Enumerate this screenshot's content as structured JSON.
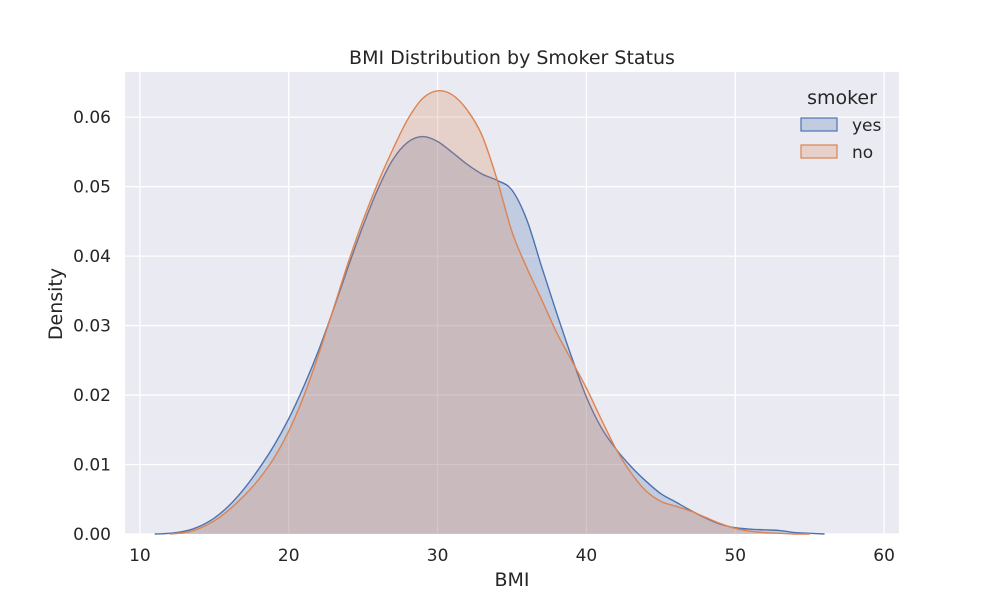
{
  "chart_data": {
    "type": "area",
    "title": "BMI Distribution by Smoker Status",
    "xlabel": "BMI",
    "ylabel": "Density",
    "xlim": [
      9,
      61
    ],
    "ylim": [
      0,
      0.0665
    ],
    "xticks": [
      10,
      20,
      30,
      40,
      50,
      60
    ],
    "yticks": [
      0.0,
      0.01,
      0.02,
      0.03,
      0.04,
      0.05,
      0.06
    ],
    "ytick_labels": [
      "0.00",
      "0.01",
      "0.02",
      "0.03",
      "0.04",
      "0.05",
      "0.06"
    ],
    "grid": true,
    "legend": {
      "title": "smoker",
      "position": "top-right"
    },
    "series": [
      {
        "name": "yes",
        "color": "#4c72b0",
        "x": [
          11,
          12,
          13,
          14,
          15,
          16,
          17,
          18,
          19,
          20,
          21,
          22,
          23,
          24,
          25,
          26,
          27,
          28,
          29,
          30,
          31,
          32,
          33,
          34,
          35,
          36,
          37,
          38,
          39,
          40,
          41,
          42,
          43,
          44,
          45,
          46,
          47,
          48,
          49,
          50,
          51,
          52,
          53,
          54,
          55,
          56
        ],
        "y": [
          0.0,
          0.0001,
          0.0004,
          0.0011,
          0.0023,
          0.0041,
          0.0065,
          0.0094,
          0.0127,
          0.0166,
          0.0212,
          0.0264,
          0.0323,
          0.0385,
          0.0444,
          0.0497,
          0.0539,
          0.0564,
          0.0572,
          0.0565,
          0.0549,
          0.0532,
          0.0518,
          0.0509,
          0.0495,
          0.0452,
          0.0384,
          0.0318,
          0.0255,
          0.0197,
          0.0153,
          0.0122,
          0.0097,
          0.0076,
          0.0058,
          0.0046,
          0.0034,
          0.0023,
          0.0014,
          0.0009,
          0.0007,
          0.0006,
          0.0005,
          0.0002,
          0.0001,
          0.0
        ]
      },
      {
        "name": "no",
        "color": "#dd8452",
        "x": [
          12,
          13,
          14,
          15,
          16,
          17,
          18,
          19,
          20,
          21,
          22,
          23,
          24,
          25,
          26,
          27,
          28,
          29,
          30,
          31,
          32,
          33,
          34,
          35,
          36,
          37,
          38,
          39,
          40,
          41,
          42,
          43,
          44,
          45,
          46,
          47,
          48,
          49,
          50,
          51,
          52,
          53,
          54,
          55
        ],
        "y": [
          0.0,
          0.0002,
          0.0008,
          0.0019,
          0.0035,
          0.0055,
          0.0079,
          0.0109,
          0.0148,
          0.0198,
          0.0258,
          0.0324,
          0.0391,
          0.0452,
          0.0506,
          0.0554,
          0.0597,
          0.0627,
          0.0638,
          0.0632,
          0.061,
          0.0573,
          0.051,
          0.0435,
          0.0383,
          0.0337,
          0.029,
          0.025,
          0.021,
          0.0165,
          0.0122,
          0.0088,
          0.0062,
          0.0047,
          0.004,
          0.0033,
          0.0024,
          0.0015,
          0.0008,
          0.0004,
          0.0002,
          0.0001,
          0.0,
          0.0
        ]
      }
    ]
  }
}
